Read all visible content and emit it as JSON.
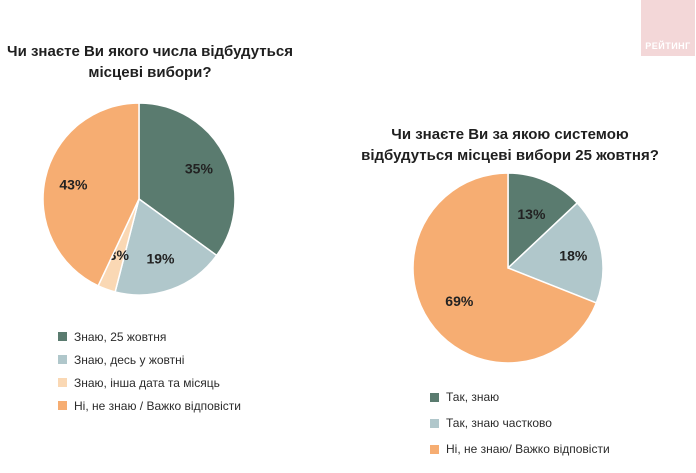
{
  "logo": {
    "text": "РЕЙТИНГ"
  },
  "chart_data": [
    {
      "type": "pie",
      "title": [
        "Чи знаєте Ви якого числа відбудуться",
        "місцеві вибори?"
      ],
      "categories": [
        "Знаю, 25 жовтня",
        "Знаю, десь у жовтні",
        "Знаю, інша дата та місяць",
        "Ні, не знаю / Важко відповісти"
      ],
      "values": [
        35,
        19,
        3,
        43
      ],
      "value_labels": [
        "35%",
        "19%",
        "3%",
        "43%"
      ],
      "colors": [
        "#5a7b6f",
        "#b0c7cb",
        "#fad8b4",
        "#f6ad72"
      ],
      "legend_position": "bottom"
    },
    {
      "type": "pie",
      "title": [
        "Чи знаєте Ви за якою системою",
        "відбудуться місцеві вибори 25 жовтня?"
      ],
      "categories": [
        "Так, знаю",
        "Так, знаю частково",
        "Ні, не знаю/ Важко відповісти"
      ],
      "values": [
        13,
        18,
        69
      ],
      "value_labels": [
        "13%",
        "18%",
        "69%"
      ],
      "colors": [
        "#5a7b6f",
        "#b0c7cb",
        "#f6ad72"
      ],
      "legend_position": "bottom"
    }
  ]
}
